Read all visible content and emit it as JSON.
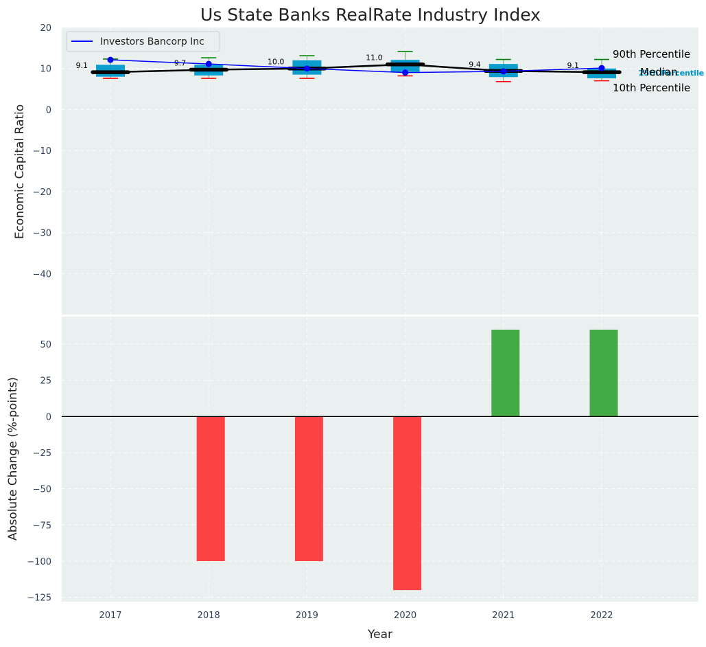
{
  "chart_data": [
    {
      "type": "box",
      "title": "Us State Banks RealRate Industry Index",
      "ylabel": "Economic Capital Ratio",
      "ylim": [
        -50,
        20
      ],
      "yticks": [
        20,
        10,
        0,
        -10,
        -20,
        -30,
        -40
      ],
      "categories": [
        "2017",
        "2018",
        "2019",
        "2020",
        "2021",
        "2022"
      ],
      "p10": [
        7.6,
        7.6,
        7.6,
        8.2,
        6.8,
        7.0
      ],
      "p25": [
        8.0,
        8.3,
        8.5,
        9.2,
        7.9,
        7.6
      ],
      "median": [
        9.1,
        9.7,
        10.0,
        11.0,
        9.4,
        9.1
      ],
      "p75": [
        10.9,
        10.9,
        12.0,
        12.1,
        11.1,
        10.0
      ],
      "p90": [
        12.3,
        12.6,
        13.1,
        14.1,
        12.2,
        12.2
      ],
      "median_labels": [
        "9.1",
        "9.7",
        "10.0",
        "11.0",
        "9.4",
        "9.1"
      ],
      "series": [
        {
          "name": "Investors Bancorp Inc",
          "values": [
            12.1,
            11.1,
            10.0,
            9.0,
            9.3,
            10.1
          ],
          "color": "#0000ff"
        }
      ],
      "median_line_color": "#000000",
      "box_color": "#0099cc",
      "p90_color": "#008000",
      "p10_color": "#ff0000",
      "percentile_labels": {
        "p90": "90th Percentile",
        "p75": "75th Percentile",
        "median": "Median",
        "p25": "25th Percentile",
        "p10": "10th Percentile"
      },
      "legend_position": "top-left"
    },
    {
      "type": "bar",
      "xlabel": "Year",
      "ylabel": "Absolute Change (%-points)",
      "ylim": [
        -128,
        69
      ],
      "yticks": [
        50,
        25,
        0,
        -25,
        -50,
        -75,
        -100,
        -125
      ],
      "categories": [
        "2017",
        "2018",
        "2019",
        "2020",
        "2021",
        "2022"
      ],
      "values": [
        0,
        -100,
        -100,
        -120,
        60,
        60
      ],
      "positive_color": "#2ca02c",
      "negative_color": "#ff2a2a"
    }
  ]
}
